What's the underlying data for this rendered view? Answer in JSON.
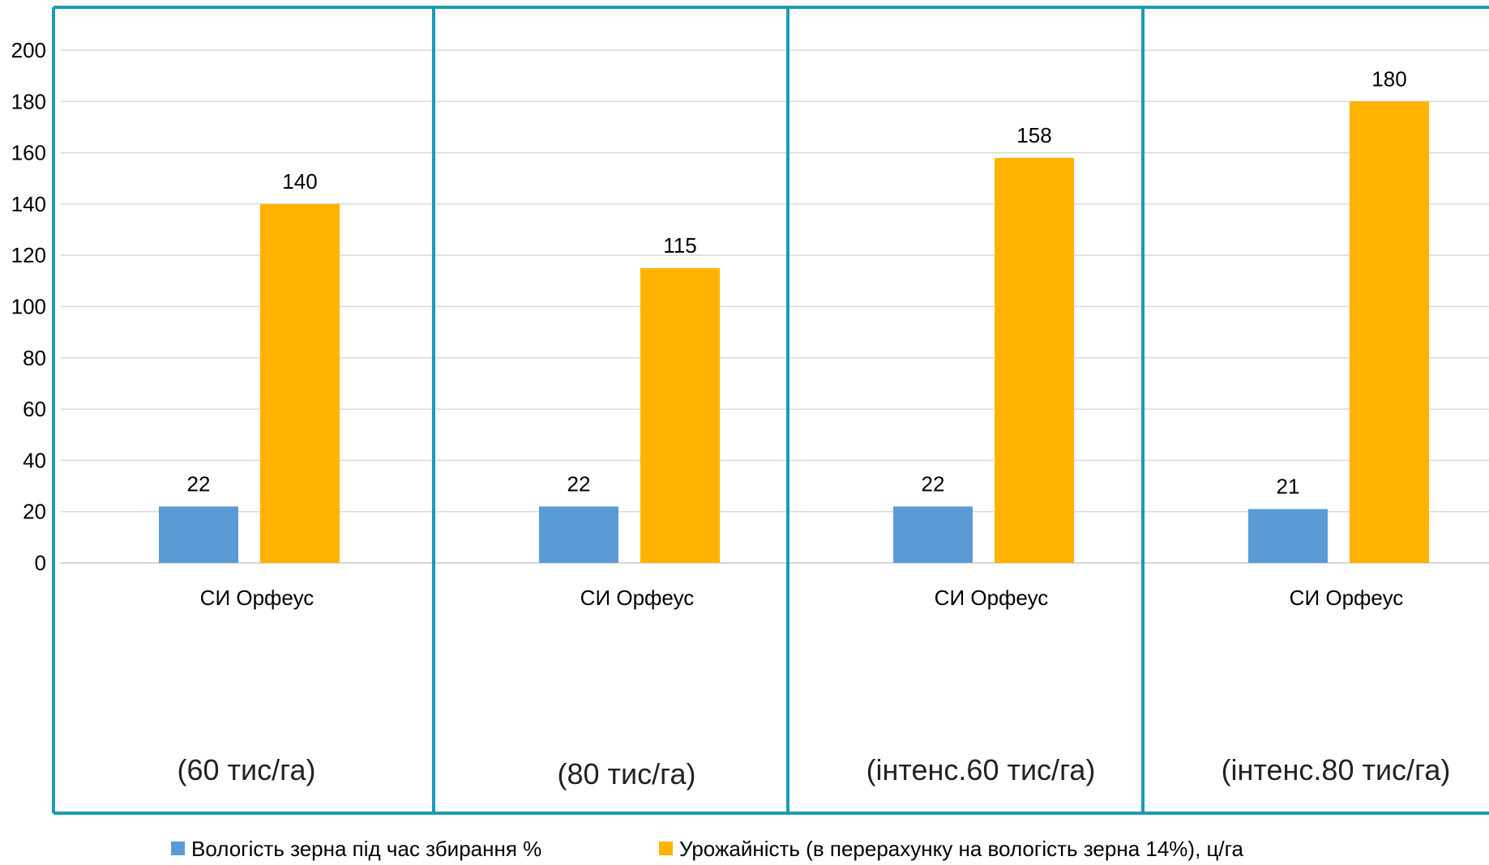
{
  "chart_data": {
    "type": "bar",
    "categories": [
      "СИ Орфеус",
      "СИ Орфеус",
      "СИ Орфеус",
      "СИ Орфеус"
    ],
    "group_sublabels": [
      "(60 тис/га)",
      "(80 тис/га)",
      "(інтенс.60 тис/га)",
      "(інтенс.80 тис/га)"
    ],
    "series": [
      {
        "name": "Вологість зерна під час збирання %",
        "color": "#5B9BD5",
        "values": [
          22,
          22,
          22,
          21
        ]
      },
      {
        "name": "Урожайність  (в перерахунку на вологість зерна 14%), ц/га",
        "color": "#FFB300",
        "values": [
          140,
          115,
          158,
          180
        ]
      }
    ],
    "yticks": [
      0,
      20,
      40,
      60,
      80,
      100,
      120,
      140,
      160,
      180,
      200
    ],
    "ylim": [
      0,
      200
    ],
    "grid": true,
    "legend_position": "bottom",
    "panel_border_color": "#1B9BB5"
  }
}
